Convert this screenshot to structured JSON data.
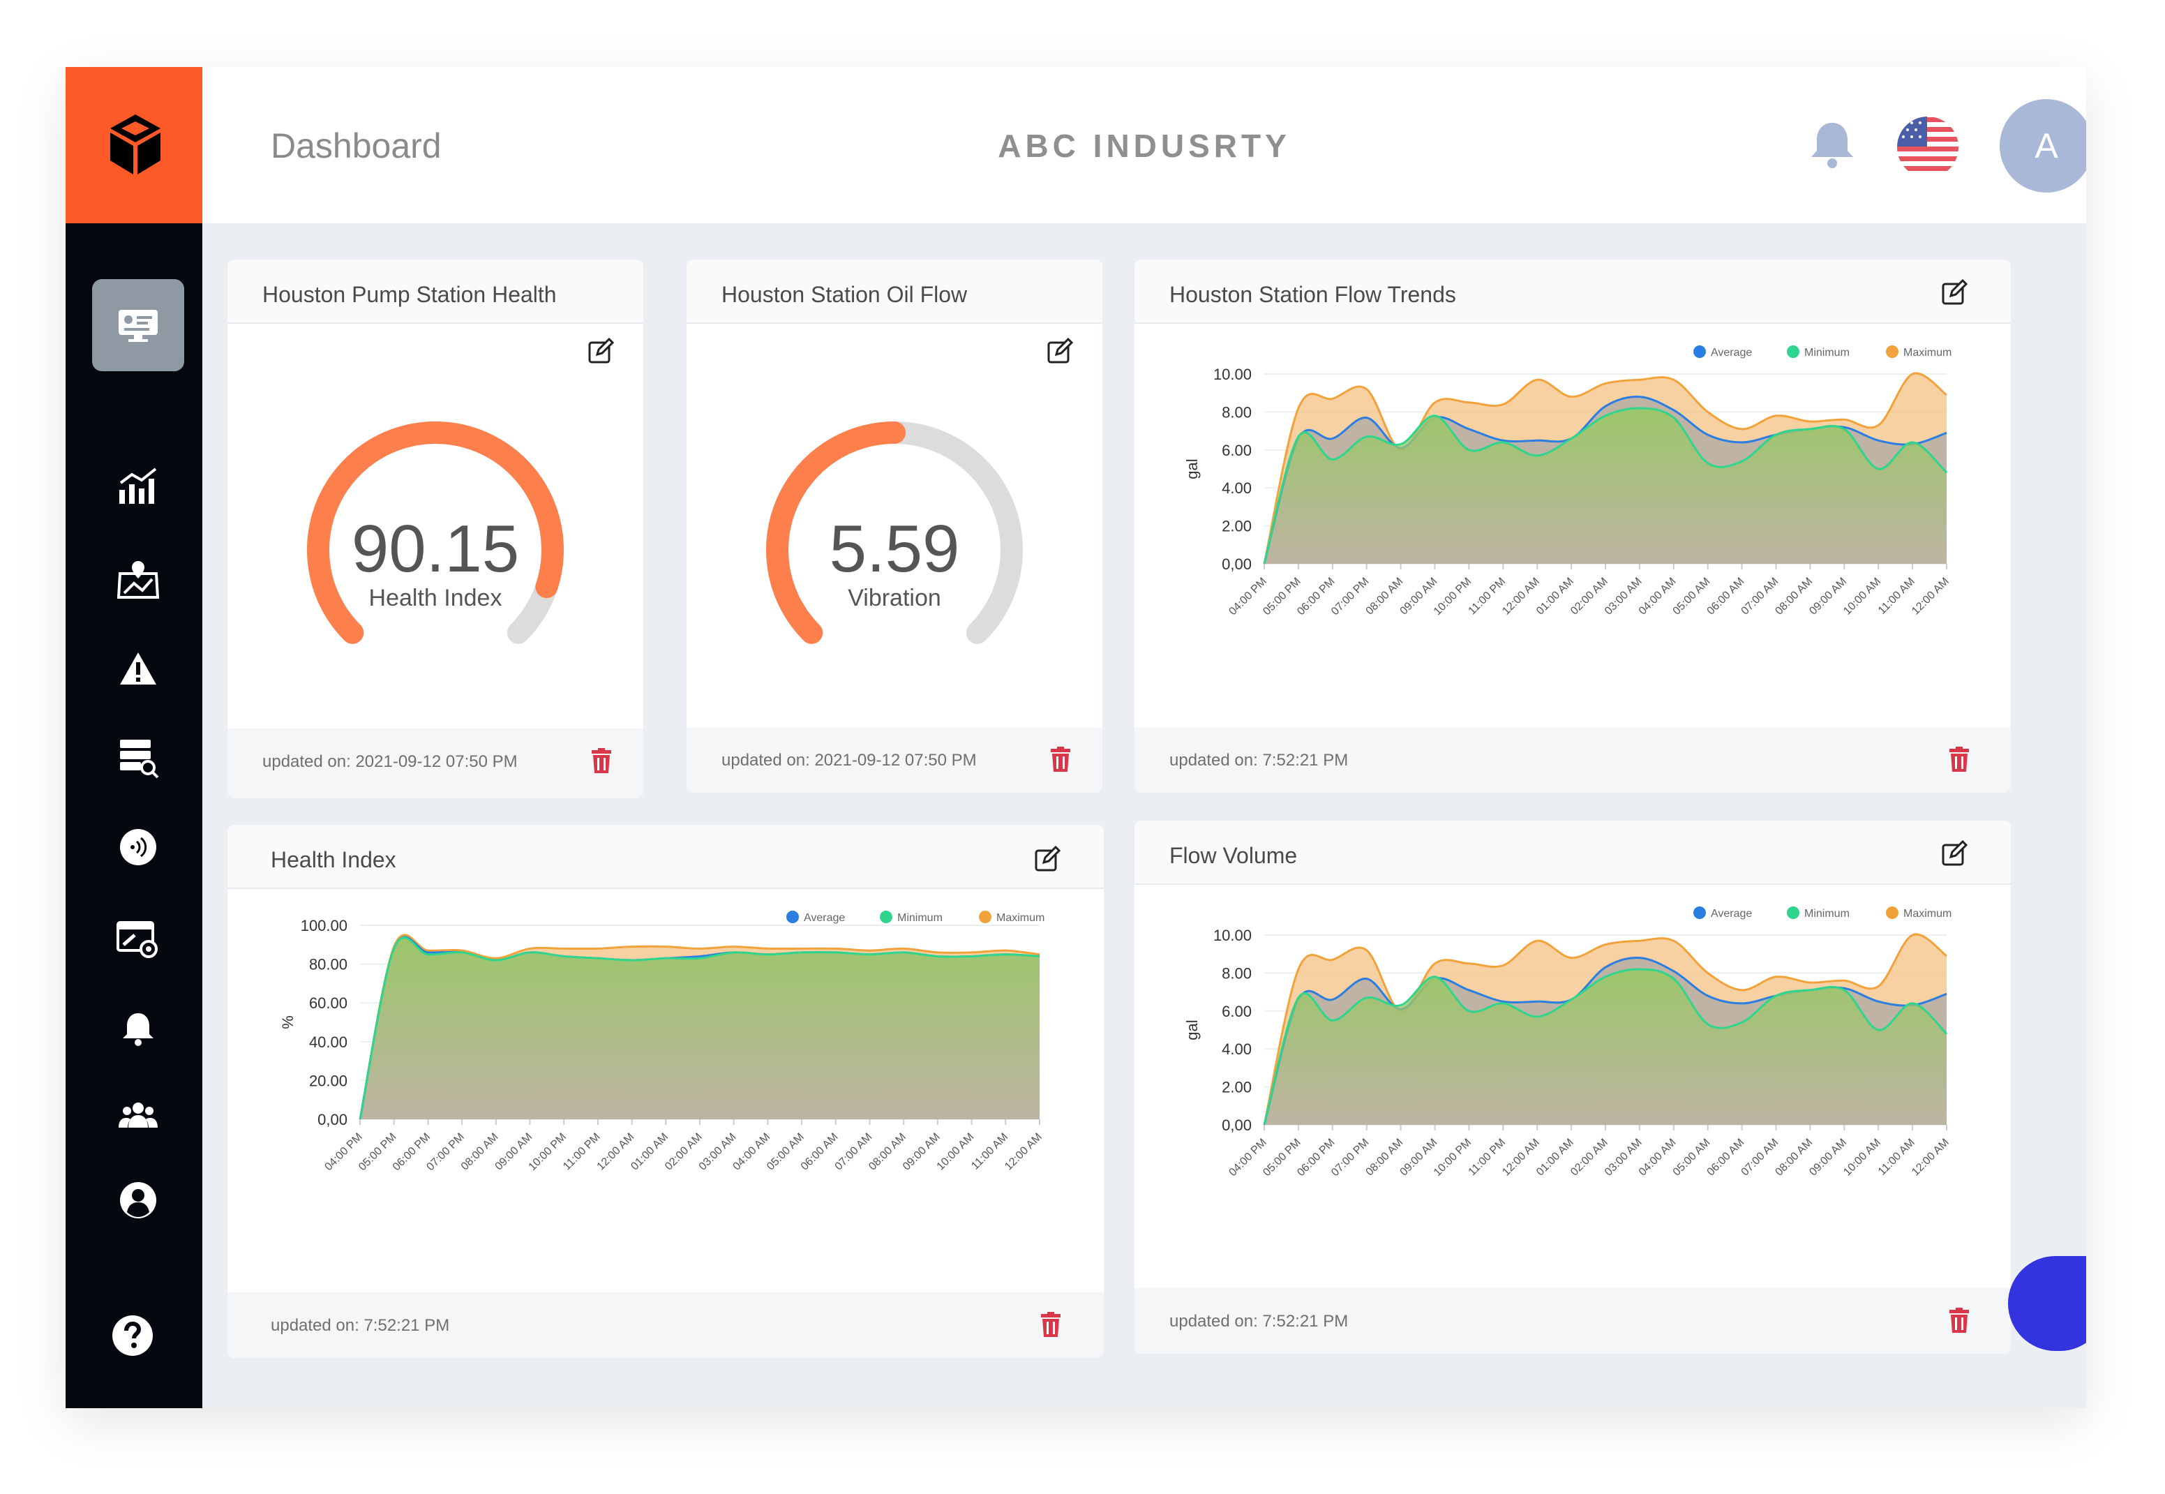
{
  "header": {
    "page_title": "Dashboard",
    "company": "ABC INDUSRTY",
    "avatar_letter": "A"
  },
  "sidebar": {
    "items": [
      {
        "icon": "dashboard-icon",
        "active": true
      },
      {
        "icon": "analytics-icon",
        "active": false
      },
      {
        "icon": "map-icon",
        "active": false
      },
      {
        "icon": "warning-icon",
        "active": false
      },
      {
        "icon": "server-search-icon",
        "active": false
      },
      {
        "icon": "sensor-icon",
        "active": false
      },
      {
        "icon": "settings-window-icon",
        "active": false
      },
      {
        "icon": "bell-icon",
        "active": false
      },
      {
        "icon": "users-icon",
        "active": false
      },
      {
        "icon": "user-circle-icon",
        "active": false
      }
    ],
    "help_icon": "help-icon"
  },
  "colors": {
    "brand": "#fd5a28",
    "gauge": "#fc7f4c",
    "average": "#2a7de1",
    "minimum": "#2fd58c",
    "maximum": "#f2a23b",
    "delete": "#d9364a",
    "chat": "#3333e0"
  },
  "cards": {
    "pump_health": {
      "title": "Houston Pump Station Health",
      "value": "90.15",
      "label": "Health Index",
      "fraction": 0.9015,
      "updated": "updated on: 2021-09-12 07:50 PM"
    },
    "oil_flow": {
      "title": "Houston Station Oil Flow",
      "value": "5.59",
      "label": "Vibration",
      "fraction": 0.5,
      "updated": "updated on: 2021-09-12 07:50 PM"
    },
    "flow_trends": {
      "title": "Houston Station Flow Trends",
      "updated": "updated on: 7:52:21 PM"
    },
    "health_index": {
      "title": "Health Index",
      "updated": "updated on: 7:52:21 PM"
    },
    "flow_volume": {
      "title": "Flow Volume",
      "updated": "updated on: 7:52:21 PM"
    }
  },
  "chart_data": [
    {
      "id": "flow_trends",
      "type": "area",
      "title": "Houston Station Flow Trends",
      "ylabel": "gal",
      "ylim": [
        0,
        10
      ],
      "yticks": [
        "0,00",
        "2.00",
        "4.00",
        "6.00",
        "8.00",
        "10.00"
      ],
      "ytick_values": [
        0,
        2,
        4,
        6,
        8,
        10
      ],
      "categories": [
        "04:00 PM",
        "05:00 PM",
        "06:00 PM",
        "07:00 PM",
        "08:00 AM",
        "09:00 AM",
        "10:00 PM",
        "11:00 PM",
        "12:00 AM",
        "01:00 AM",
        "02:00 AM",
        "03:00 AM",
        "04:00 AM",
        "05:00 AM",
        "06:00 AM",
        "07:00 AM",
        "08:00 AM",
        "09:00 AM",
        "10:00 AM",
        "11:00 AM",
        "12:00 AM"
      ],
      "legend_position": "top-right",
      "grid": true,
      "series": [
        {
          "name": "Average",
          "values": [
            0.0,
            6.6,
            6.6,
            7.7,
            6.1,
            7.7,
            7.1,
            6.5,
            6.5,
            6.6,
            8.3,
            8.8,
            8.1,
            6.8,
            6.4,
            6.8,
            7.1,
            7.2,
            6.5,
            6.3,
            6.9
          ]
        },
        {
          "name": "Minimum",
          "values": [
            0.0,
            6.7,
            5.5,
            6.7,
            6.3,
            7.8,
            6.0,
            6.4,
            5.7,
            6.6,
            7.8,
            8.2,
            7.7,
            5.3,
            5.4,
            6.8,
            7.1,
            7.1,
            5.0,
            6.4,
            4.8
          ]
        },
        {
          "name": "Maximum",
          "values": [
            0.0,
            8.2,
            8.7,
            9.2,
            6.0,
            8.5,
            8.5,
            8.4,
            9.7,
            8.8,
            9.5,
            9.7,
            9.7,
            8.0,
            7.1,
            7.8,
            7.5,
            7.6,
            7.3,
            10.0,
            8.9
          ]
        }
      ]
    },
    {
      "id": "health_index",
      "type": "area",
      "title": "Health Index",
      "ylabel": "%",
      "ylim": [
        0,
        100
      ],
      "yticks": [
        "0,00",
        "20.00",
        "40.00",
        "60.00",
        "80.00",
        "100.00"
      ],
      "ytick_values": [
        0,
        20,
        40,
        60,
        80,
        100
      ],
      "categories": [
        "04:00 PM",
        "05:00 PM",
        "06:00 PM",
        "07:00 PM",
        "08:00 AM",
        "09:00 AM",
        "10:00 PM",
        "11:00 PM",
        "12:00 AM",
        "01:00 AM",
        "02:00 AM",
        "03:00 AM",
        "04:00 AM",
        "05:00 AM",
        "06:00 AM",
        "07:00 AM",
        "08:00 AM",
        "09:00 AM",
        "10:00 AM",
        "11:00 AM",
        "12:00 AM"
      ],
      "legend_position": "top-right",
      "grid": true,
      "series": [
        {
          "name": "Average",
          "values": [
            0,
            88,
            86,
            86,
            82,
            86,
            84,
            83,
            82,
            83,
            84,
            86,
            85,
            86,
            86,
            85,
            86,
            84,
            84,
            85,
            84
          ]
        },
        {
          "name": "Minimum",
          "values": [
            0,
            88,
            85,
            86,
            82,
            86,
            84,
            83,
            82,
            83,
            83,
            86,
            85,
            86,
            86,
            85,
            86,
            84,
            84,
            85,
            84
          ]
        },
        {
          "name": "Maximum",
          "values": [
            0,
            89,
            87,
            87,
            83,
            88,
            88,
            88,
            89,
            89,
            88,
            89,
            88,
            88,
            88,
            87,
            88,
            86,
            86,
            87,
            85
          ]
        }
      ]
    },
    {
      "id": "flow_volume",
      "type": "area",
      "title": "Flow Volume",
      "ylabel": "gal",
      "ylim": [
        0,
        10
      ],
      "yticks": [
        "0,00",
        "2.00",
        "4.00",
        "6.00",
        "8.00",
        "10.00"
      ],
      "ytick_values": [
        0,
        2,
        4,
        6,
        8,
        10
      ],
      "categories": [
        "04:00 PM",
        "05:00 PM",
        "06:00 PM",
        "07:00 PM",
        "08:00 AM",
        "09:00 AM",
        "10:00 PM",
        "11:00 PM",
        "12:00 AM",
        "01:00 AM",
        "02:00 AM",
        "03:00 AM",
        "04:00 AM",
        "05:00 AM",
        "06:00 AM",
        "07:00 AM",
        "08:00 AM",
        "09:00 AM",
        "10:00 AM",
        "11:00 AM",
        "12:00 AM"
      ],
      "legend_position": "top-right",
      "grid": true,
      "series": [
        {
          "name": "Average",
          "values": [
            0.0,
            6.6,
            6.6,
            7.7,
            6.1,
            7.7,
            7.1,
            6.5,
            6.5,
            6.6,
            8.3,
            8.8,
            8.1,
            6.8,
            6.4,
            6.8,
            7.1,
            7.2,
            6.5,
            6.3,
            6.9
          ]
        },
        {
          "name": "Minimum",
          "values": [
            0.0,
            6.7,
            5.5,
            6.7,
            6.3,
            7.8,
            6.0,
            6.4,
            5.7,
            6.6,
            7.8,
            8.2,
            7.7,
            5.3,
            5.4,
            6.8,
            7.1,
            7.1,
            5.0,
            6.4,
            4.8
          ]
        },
        {
          "name": "Maximum",
          "values": [
            0.0,
            8.2,
            8.7,
            9.2,
            6.0,
            8.5,
            8.5,
            8.4,
            9.7,
            8.8,
            9.5,
            9.7,
            9.7,
            8.0,
            7.1,
            7.8,
            7.5,
            7.6,
            7.3,
            10.0,
            8.9
          ]
        }
      ]
    }
  ]
}
